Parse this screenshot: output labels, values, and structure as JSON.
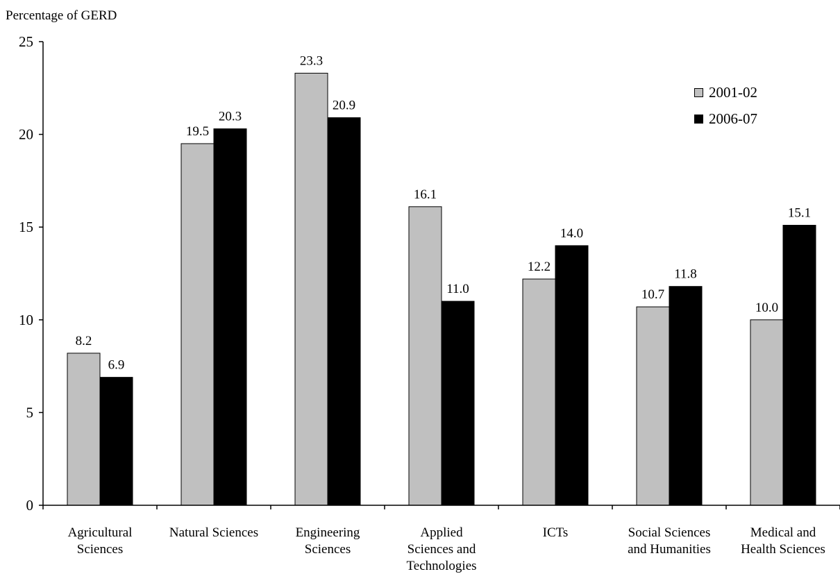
{
  "chart_data": {
    "type": "bar",
    "title": "",
    "ylabel": "Percentage of GERD",
    "xlabel": "",
    "ylim": [
      0,
      25
    ],
    "yticks": [
      0,
      5,
      10,
      15,
      20,
      25
    ],
    "categories": [
      "Agricultural Sciences",
      "Natural Sciences",
      "Engineering Sciences",
      "Applied Sciences and Technologies",
      "ICTs",
      "Social Sciences and Humanities",
      "Medical and Health Sciences"
    ],
    "category_label_lines": [
      [
        "Agricultural",
        "Sciences"
      ],
      [
        "Natural Sciences"
      ],
      [
        "Engineering",
        "Sciences"
      ],
      [
        "Applied",
        "Sciences and",
        "Technologies"
      ],
      [
        "ICTs"
      ],
      [
        "Social Sciences",
        "and Humanities"
      ],
      [
        "Medical and",
        "Health Sciences"
      ]
    ],
    "series": [
      {
        "name": "2001-02",
        "color": "#c0c0c0",
        "values": [
          8.2,
          19.5,
          23.3,
          16.1,
          12.2,
          10.7,
          10.0
        ]
      },
      {
        "name": "2006-07",
        "color": "#000000",
        "values": [
          6.9,
          20.3,
          20.9,
          11.0,
          14.0,
          11.8,
          15.1
        ]
      }
    ],
    "data_labels": [
      [
        "8.2",
        "19.5",
        "23.3",
        "16.1",
        "12.2",
        "10.7",
        "10.0"
      ],
      [
        "6.9",
        "20.3",
        "20.9",
        "11.0",
        "14.0",
        "11.8",
        "15.1"
      ]
    ],
    "legend_position": "top-right",
    "grid": false
  }
}
